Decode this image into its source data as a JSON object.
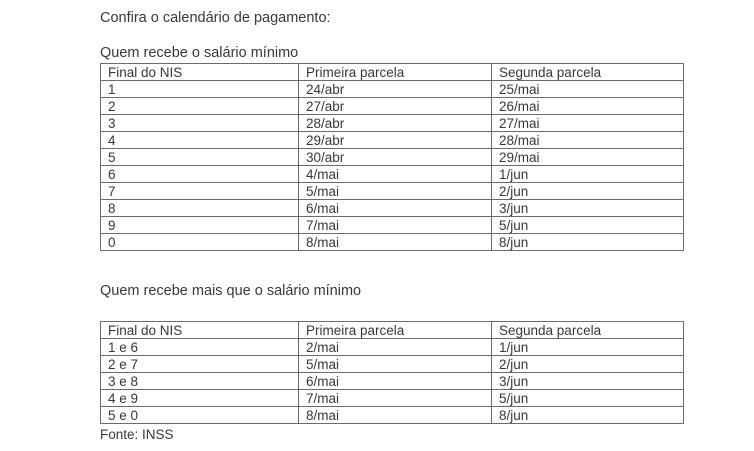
{
  "page": {
    "title": "Confira o calendário de pagamento:",
    "source": "Fonte: INSS"
  },
  "colors": {
    "background": "#ffffff",
    "text": "#383838",
    "table_border": "#6b6b6b"
  },
  "sections": [
    {
      "heading": "Quem recebe o salário mínimo",
      "table": {
        "headers": [
          "Final do NIS",
          "Primeira parcela",
          "Segunda parcela"
        ],
        "rows": [
          [
            "1",
            "24/abr",
            "25/mai"
          ],
          [
            "2",
            "27/abr",
            "26/mai"
          ],
          [
            "3",
            "28/abr",
            "27/mai"
          ],
          [
            "4",
            "29/abr",
            "28/mai"
          ],
          [
            "5",
            "30/abr",
            "29/mai"
          ],
          [
            "6",
            "4/mai",
            "1/jun"
          ],
          [
            "7",
            "5/mai",
            "2/jun"
          ],
          [
            "8",
            "6/mai",
            "3/jun"
          ],
          [
            "9",
            "7/mai",
            "5/jun"
          ],
          [
            "0",
            "8/mai",
            "8/jun"
          ]
        ]
      }
    },
    {
      "heading": "Quem recebe mais que o salário mínimo",
      "table": {
        "headers": [
          "Final do NIS",
          "Primeira parcela",
          "Segunda parcela"
        ],
        "rows": [
          [
            "1 e 6",
            "2/mai",
            "1/jun"
          ],
          [
            "2 e 7",
            "5/mai",
            "2/jun"
          ],
          [
            "3 e 8",
            "6/mai",
            "3/jun"
          ],
          [
            "4 e 9",
            "7/mai",
            "5/jun"
          ],
          [
            "5 e 0",
            "8/mai",
            "8/jun"
          ]
        ]
      }
    }
  ]
}
